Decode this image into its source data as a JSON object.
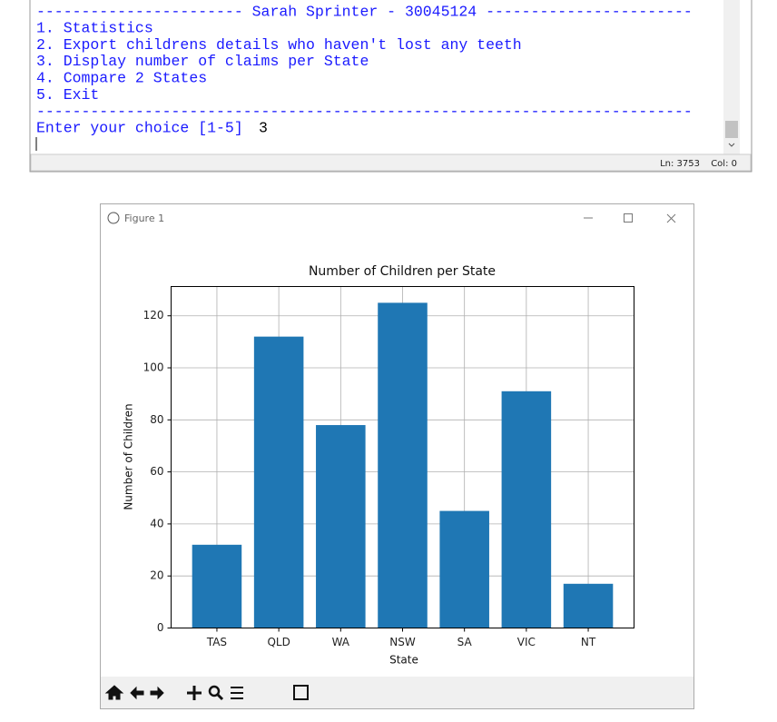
{
  "console": {
    "header": "----------------------- Sarah Sprinter - 30045124 -----------------------",
    "menu": [
      "1. Statistics",
      "2. Export childrens details who haven't lost any teeth",
      "3. Display number of claims per State",
      "4. Compare 2 States",
      "5. Exit"
    ],
    "separator": "-------------------------------------------------------------------------",
    "prompt": "Enter your choice [1-5]",
    "input": "3",
    "status": {
      "line": "Ln: 3753",
      "col": "Col: 0"
    }
  },
  "figure": {
    "window_title": "Figure 1"
  },
  "chart_data": {
    "type": "bar",
    "title": "Number of Children per State",
    "x_label": "State",
    "y_label": "Number of Children",
    "categories": [
      "TAS",
      "QLD",
      "WA",
      "NSW",
      "SA",
      "VIC",
      "NT"
    ],
    "values": [
      32,
      112,
      78,
      125,
      45,
      91,
      17
    ],
    "color": "#1f77b4",
    "ylim": [
      0,
      131.25
    ],
    "yticks": [
      0,
      20,
      40,
      60,
      80,
      100,
      120
    ],
    "grid": true
  }
}
